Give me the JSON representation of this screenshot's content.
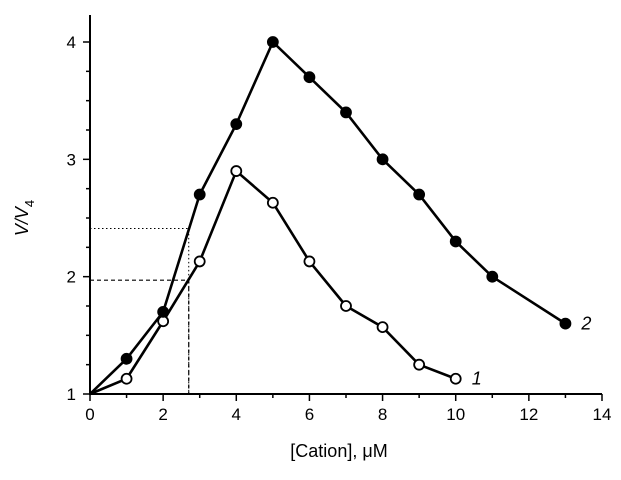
{
  "chart_data": {
    "type": "line",
    "xlabel": "[Cation], μM",
    "ylabel_main": "V/V",
    "ylabel_sub": "4",
    "xlim": [
      0,
      14
    ],
    "ylim": [
      1,
      4
    ],
    "x_ticks": [
      0,
      2,
      4,
      6,
      8,
      10,
      12,
      14
    ],
    "y_ticks": [
      1,
      2,
      3,
      4
    ],
    "grid": false,
    "series": [
      {
        "name": "1",
        "marker": "open-circle",
        "x": [
          0,
          1,
          2,
          3,
          4,
          5,
          6,
          7,
          8,
          9,
          10
        ],
        "y": [
          1.0,
          1.13,
          1.62,
          2.13,
          2.9,
          2.63,
          2.13,
          1.75,
          1.57,
          1.25,
          1.13
        ]
      },
      {
        "name": "2",
        "marker": "filled-circle",
        "x": [
          0,
          1,
          2,
          3,
          4,
          5,
          6,
          7,
          8,
          9,
          10,
          11,
          13
        ],
        "y": [
          1.0,
          1.3,
          1.7,
          2.7,
          3.3,
          4.0,
          3.7,
          3.4,
          3.0,
          2.7,
          2.3,
          2.0,
          1.6
        ]
      }
    ],
    "guides": [
      {
        "style": "dotted",
        "x": 2.7,
        "y": 2.41
      },
      {
        "style": "dashed",
        "x": 2.7,
        "y": 1.97
      }
    ]
  }
}
